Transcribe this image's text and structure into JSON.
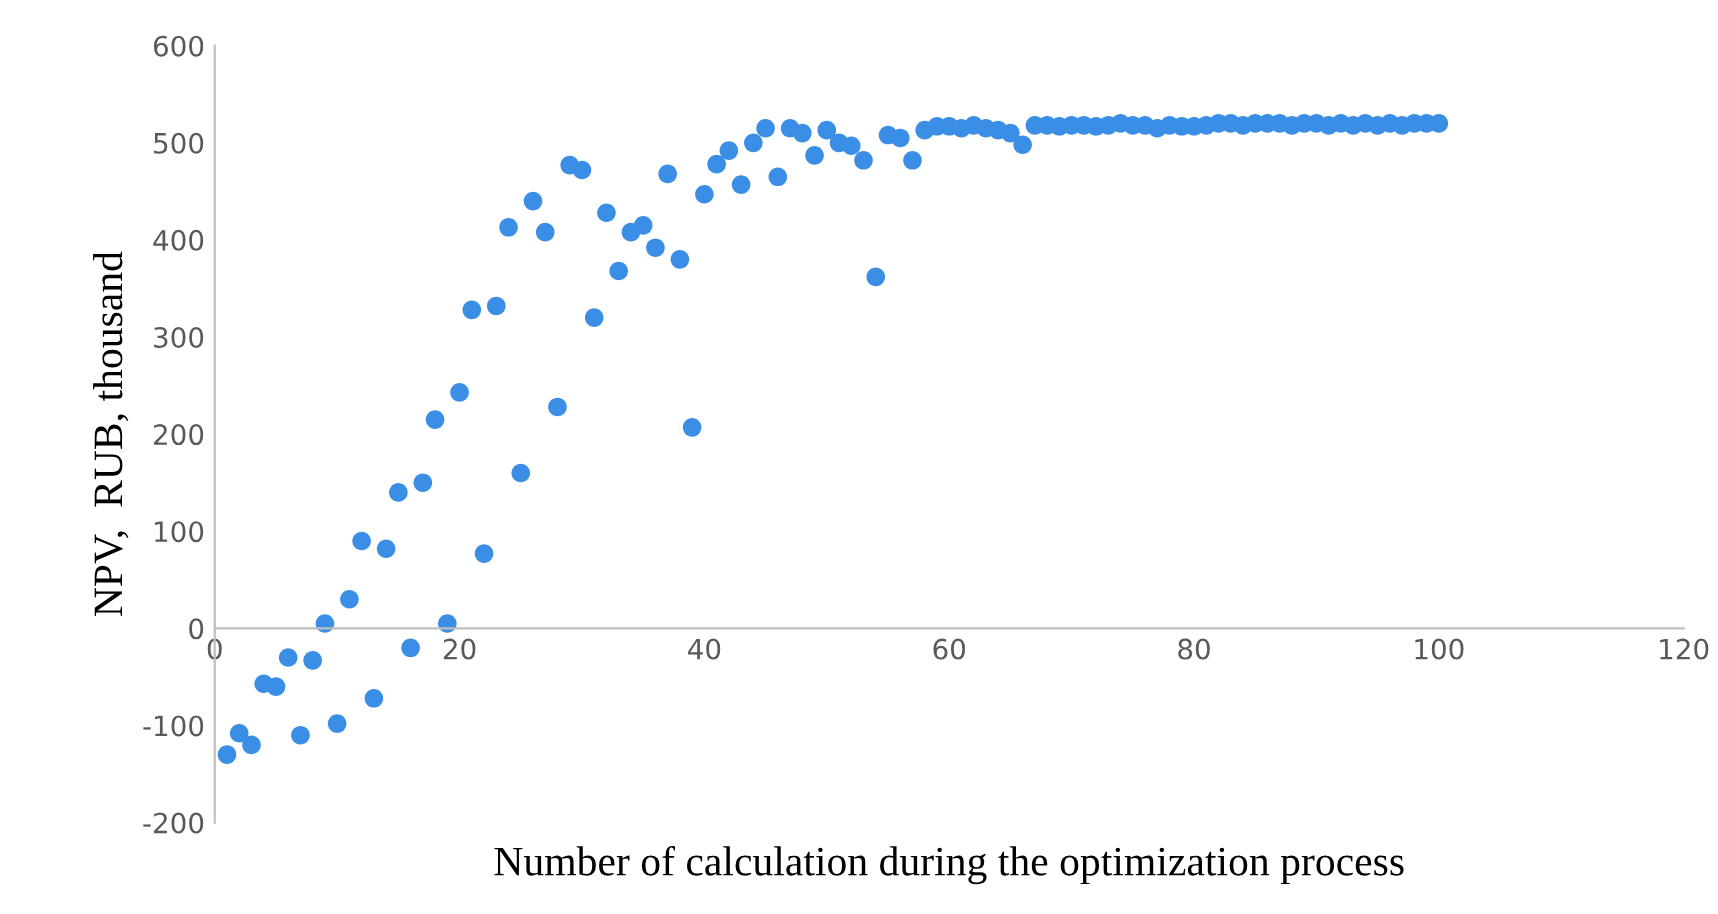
{
  "chart_data": {
    "type": "scatter",
    "xlabel": "Number of calculation during the optimization process",
    "ylabel": "NPV,  RUB, thousand",
    "x": [
      1,
      2,
      3,
      4,
      5,
      6,
      7,
      8,
      9,
      10,
      11,
      12,
      13,
      14,
      15,
      16,
      17,
      18,
      19,
      20,
      21,
      22,
      23,
      24,
      25,
      26,
      27,
      28,
      29,
      30,
      31,
      32,
      33,
      34,
      35,
      36,
      37,
      38,
      39,
      40,
      41,
      42,
      43,
      44,
      45,
      46,
      47,
      48,
      49,
      50,
      51,
      52,
      53,
      54,
      55,
      56,
      57,
      58,
      59,
      60,
      61,
      62,
      63,
      64,
      65,
      66,
      67,
      68,
      69,
      70,
      71,
      72,
      73,
      74,
      75,
      76,
      77,
      78,
      79,
      80,
      81,
      82,
      83,
      84,
      85,
      86,
      87,
      88,
      89,
      90,
      91,
      92,
      93,
      94,
      95,
      96,
      97,
      98,
      99,
      100
    ],
    "series": [
      {
        "color": "#3a8ee6",
        "values": [
          -130,
          -108,
          -120,
          -57,
          -60,
          -30,
          -110,
          -33,
          5,
          -98,
          30,
          90,
          -72,
          82,
          140,
          -20,
          150,
          215,
          5,
          243,
          328,
          77,
          332,
          413,
          160,
          440,
          408,
          228,
          477,
          472,
          320,
          428,
          368,
          408,
          415,
          392,
          468,
          380,
          207,
          447,
          478,
          492,
          457,
          500,
          515,
          465,
          515,
          510,
          487,
          513,
          500,
          497,
          482,
          362,
          508,
          505,
          482,
          513,
          517,
          517,
          515,
          518,
          515,
          513,
          510,
          498,
          518,
          518,
          517,
          518,
          518,
          517,
          518,
          520,
          518,
          518,
          515,
          518,
          517,
          517,
          518,
          520,
          520,
          518,
          520,
          520,
          520,
          518,
          520,
          520,
          518,
          520,
          518,
          520,
          518,
          520,
          518,
          520,
          520,
          520
        ]
      }
    ],
    "xlim": [
      0,
      120
    ],
    "xticks": [
      0,
      20,
      40,
      60,
      80,
      100,
      120
    ],
    "ylim": [
      -200,
      600
    ],
    "yticks": [
      -200,
      -100,
      0,
      100,
      200,
      300,
      400,
      500,
      600
    ],
    "marker": "circle",
    "grid": false,
    "legend": false
  }
}
